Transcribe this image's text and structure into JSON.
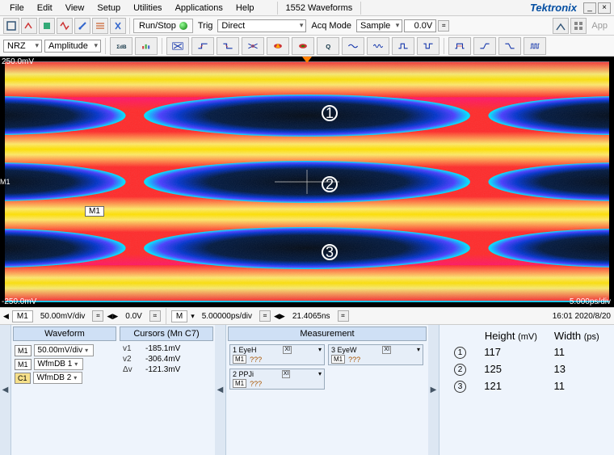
{
  "menu": {
    "items": [
      "File",
      "Edit",
      "View",
      "Setup",
      "Utilities",
      "Applications",
      "Help"
    ],
    "doc_title": "1552 Waveforms",
    "brand": "Tektronix"
  },
  "toolbar1": {
    "runstop": "Run/Stop",
    "trig_label": "Trig",
    "trig_mode": "Direct",
    "acq_label": "Acq Mode",
    "acq_mode": "Sample",
    "level": "0.0V",
    "app_label": "App"
  },
  "toolbar2": {
    "encoding": "NRZ",
    "scale_mode": "Amplitude"
  },
  "plot": {
    "top_label": "250.0mV",
    "bottom_label": "-250.0mV",
    "time_div": "5.000ps/div",
    "marker_label": "M1",
    "left_tag": "M1",
    "circled": [
      "1",
      "2",
      "3"
    ],
    "eye_count": 3,
    "bg": "#000000",
    "heatmap_colors": {
      "hot1": "#fff36a",
      "hot2": "#ffea00",
      "mid1": "#ff2a2a",
      "mid2": "#ff00aa",
      "cool1": "#4a3cff",
      "cool2": "#0033cc",
      "edge": "#00e0ff"
    }
  },
  "status": {
    "m1": "M1",
    "vdiv": "50.00mV/div",
    "offset": "0.0V",
    "m_btn": "M",
    "tdiv": "5.00000ps/div",
    "pos": "21.4065ns",
    "timestamp": "16:01 2020/8/20"
  },
  "waveform": {
    "header": "Waveform",
    "rows": [
      {
        "badge": "M1",
        "label": "50.00mV/div"
      },
      {
        "badge": "M1",
        "label": "WfmDB 1"
      },
      {
        "badge": "C1",
        "label": "WfmDB 2"
      }
    ]
  },
  "cursors": {
    "header": "Cursors (Mn C7)",
    "rows": [
      {
        "lab": "v1",
        "val": "-185.1mV"
      },
      {
        "lab": "v2",
        "val": "-306.4mV"
      },
      {
        "lab": "Δv",
        "val": "-121.3mV"
      }
    ]
  },
  "measurement": {
    "header": "Measurement",
    "cells": [
      {
        "idx": "1",
        "name": "EyeH",
        "src": "M1",
        "val": "???"
      },
      {
        "idx": "3",
        "name": "EyeW",
        "src": "M1",
        "val": "???"
      },
      {
        "idx": "2",
        "name": "PPJi",
        "src": "M1",
        "val": "???"
      }
    ],
    "xi_glyph": "XI"
  },
  "results": {
    "headers": {
      "h": "Height",
      "h_unit": "(mV)",
      "w": "Width",
      "w_unit": "(ps)"
    },
    "rows": [
      {
        "n": "1",
        "h": "117",
        "w": "11"
      },
      {
        "n": "2",
        "h": "125",
        "w": "13"
      },
      {
        "n": "3",
        "h": "121",
        "w": "11"
      }
    ]
  }
}
